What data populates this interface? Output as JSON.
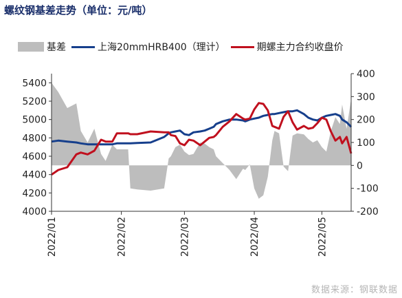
{
  "title": "螺纹钢基差走势（单位：元/吨）",
  "source": "数据来源：钢联数据",
  "colors": {
    "basis": "#bdbdbd",
    "shanghai": "#163f8c",
    "futures": "#c0101e"
  },
  "chart_data": {
    "type": "line",
    "title": "螺纹钢基差走势（单位：元/吨）",
    "legend_position": "top",
    "grid": false,
    "x_range": [
      "2022-01-01",
      "2022-05-14"
    ],
    "x_ticks": [
      "2022/01",
      "2022/02",
      "2022/03",
      "2022/04",
      "2022/05"
    ],
    "y_left": {
      "range": [
        4000,
        5500
      ],
      "ticks": [
        "4000",
        "4200",
        "4400",
        "4600",
        "4800",
        "5000",
        "5200",
        "5400"
      ]
    },
    "y_right": {
      "range": [
        -200,
        400
      ],
      "ticks": [
        "-200",
        "-100",
        "0",
        "100",
        "200",
        "300",
        "400"
      ]
    },
    "series": [
      {
        "name": "基差",
        "type": "area",
        "axis": "right",
        "x": [
          "2022-01-01",
          "2022-01-04",
          "2022-01-08",
          "2022-01-12",
          "2022-01-14",
          "2022-01-17",
          "2022-01-20",
          "2022-01-23",
          "2022-01-25",
          "2022-01-28",
          "2022-01-30",
          "2022-02-04",
          "2022-02-05",
          "2022-02-08",
          "2022-02-14",
          "2022-02-20",
          "2022-02-22",
          "2022-02-23",
          "2022-02-25",
          "2022-02-27",
          "2022-03-01",
          "2022-03-03",
          "2022-03-05",
          "2022-03-08",
          "2022-03-10",
          "2022-03-12",
          "2022-03-14",
          "2022-03-15",
          "2022-03-18",
          "2022-03-21",
          "2022-03-24",
          "2022-03-27",
          "2022-03-28",
          "2022-03-30",
          "2022-04-01",
          "2022-04-03",
          "2022-04-05",
          "2022-04-07",
          "2022-04-09",
          "2022-04-10",
          "2022-04-12",
          "2022-04-14",
          "2022-04-16",
          "2022-04-18",
          "2022-04-20",
          "2022-04-23",
          "2022-04-25",
          "2022-04-27",
          "2022-04-29",
          "2022-05-01",
          "2022-05-03",
          "2022-05-05",
          "2022-05-07",
          "2022-05-09",
          "2022-05-10",
          "2022-05-12",
          "2022-05-14"
        ],
        "values": [
          360,
          320,
          250,
          270,
          150,
          100,
          160,
          50,
          20,
          90,
          70,
          70,
          -100,
          -105,
          -110,
          -100,
          30,
          40,
          80,
          90,
          60,
          45,
          50,
          100,
          95,
          80,
          70,
          40,
          10,
          -20,
          -60,
          -15,
          -20,
          5,
          -100,
          -145,
          -130,
          -50,
          110,
          150,
          140,
          -5,
          -25,
          130,
          140,
          135,
          115,
          100,
          110,
          80,
          60,
          150,
          210,
          180,
          265,
          160,
          290
        ]
      },
      {
        "name": "上海20mmHRB400（理计）",
        "type": "line",
        "axis": "left",
        "x": [
          "2022-01-01",
          "2022-01-04",
          "2022-01-08",
          "2022-01-12",
          "2022-01-14",
          "2022-01-17",
          "2022-01-20",
          "2022-01-23",
          "2022-01-25",
          "2022-01-28",
          "2022-01-30",
          "2022-02-04",
          "2022-02-05",
          "2022-02-08",
          "2022-02-14",
          "2022-02-20",
          "2022-02-22",
          "2022-02-23",
          "2022-02-25",
          "2022-02-27",
          "2022-03-01",
          "2022-03-03",
          "2022-03-05",
          "2022-03-08",
          "2022-03-10",
          "2022-03-12",
          "2022-03-14",
          "2022-03-15",
          "2022-03-18",
          "2022-03-21",
          "2022-03-24",
          "2022-03-27",
          "2022-03-28",
          "2022-03-30",
          "2022-04-01",
          "2022-04-03",
          "2022-04-05",
          "2022-04-07",
          "2022-04-09",
          "2022-04-10",
          "2022-04-12",
          "2022-04-14",
          "2022-04-16",
          "2022-04-18",
          "2022-04-20",
          "2022-04-23",
          "2022-04-25",
          "2022-04-27",
          "2022-04-29",
          "2022-05-01",
          "2022-05-03",
          "2022-05-05",
          "2022-05-07",
          "2022-05-09",
          "2022-05-10",
          "2022-05-12",
          "2022-05-14"
        ],
        "values": [
          4760,
          4770,
          4760,
          4750,
          4740,
          4730,
          4730,
          4730,
          4730,
          4730,
          4740,
          4740,
          4740,
          4745,
          4750,
          4810,
          4850,
          4860,
          4870,
          4880,
          4840,
          4830,
          4860,
          4870,
          4880,
          4900,
          4920,
          4950,
          4980,
          5000,
          5000,
          4990,
          4980,
          5000,
          5010,
          5020,
          5040,
          5050,
          5060,
          5060,
          5070,
          5080,
          5090,
          5090,
          5100,
          5060,
          5020,
          5000,
          4990,
          5020,
          5040,
          5050,
          5060,
          5040,
          5000,
          4970,
          4920
        ]
      },
      {
        "name": "期螺主力合约收盘价",
        "type": "line",
        "axis": "left",
        "x": [
          "2022-01-01",
          "2022-01-04",
          "2022-01-08",
          "2022-01-12",
          "2022-01-14",
          "2022-01-17",
          "2022-01-20",
          "2022-01-23",
          "2022-01-25",
          "2022-01-28",
          "2022-01-30",
          "2022-02-04",
          "2022-02-05",
          "2022-02-08",
          "2022-02-14",
          "2022-02-20",
          "2022-02-22",
          "2022-02-23",
          "2022-02-25",
          "2022-02-27",
          "2022-03-01",
          "2022-03-03",
          "2022-03-05",
          "2022-03-08",
          "2022-03-10",
          "2022-03-12",
          "2022-03-14",
          "2022-03-15",
          "2022-03-18",
          "2022-03-21",
          "2022-03-24",
          "2022-03-27",
          "2022-03-28",
          "2022-03-30",
          "2022-04-01",
          "2022-04-03",
          "2022-04-05",
          "2022-04-07",
          "2022-04-09",
          "2022-04-10",
          "2022-04-12",
          "2022-04-14",
          "2022-04-16",
          "2022-04-18",
          "2022-04-20",
          "2022-04-23",
          "2022-04-25",
          "2022-04-27",
          "2022-04-29",
          "2022-05-01",
          "2022-05-03",
          "2022-05-05",
          "2022-05-07",
          "2022-05-09",
          "2022-05-10",
          "2022-05-12",
          "2022-05-14"
        ],
        "values": [
          4400,
          4450,
          4480,
          4620,
          4640,
          4620,
          4660,
          4780,
          4760,
          4760,
          4850,
          4850,
          4840,
          4840,
          4870,
          4860,
          4860,
          4830,
          4820,
          4740,
          4720,
          4780,
          4770,
          4720,
          4760,
          4800,
          4810,
          4830,
          4920,
          4980,
          5060,
          5010,
          5000,
          5010,
          5110,
          5180,
          5170,
          5100,
          4930,
          4920,
          4900,
          5030,
          5090,
          4970,
          4890,
          4930,
          4900,
          4910,
          4960,
          5020,
          5000,
          4870,
          4770,
          4810,
          4740,
          4810,
          4630
        ]
      }
    ]
  }
}
